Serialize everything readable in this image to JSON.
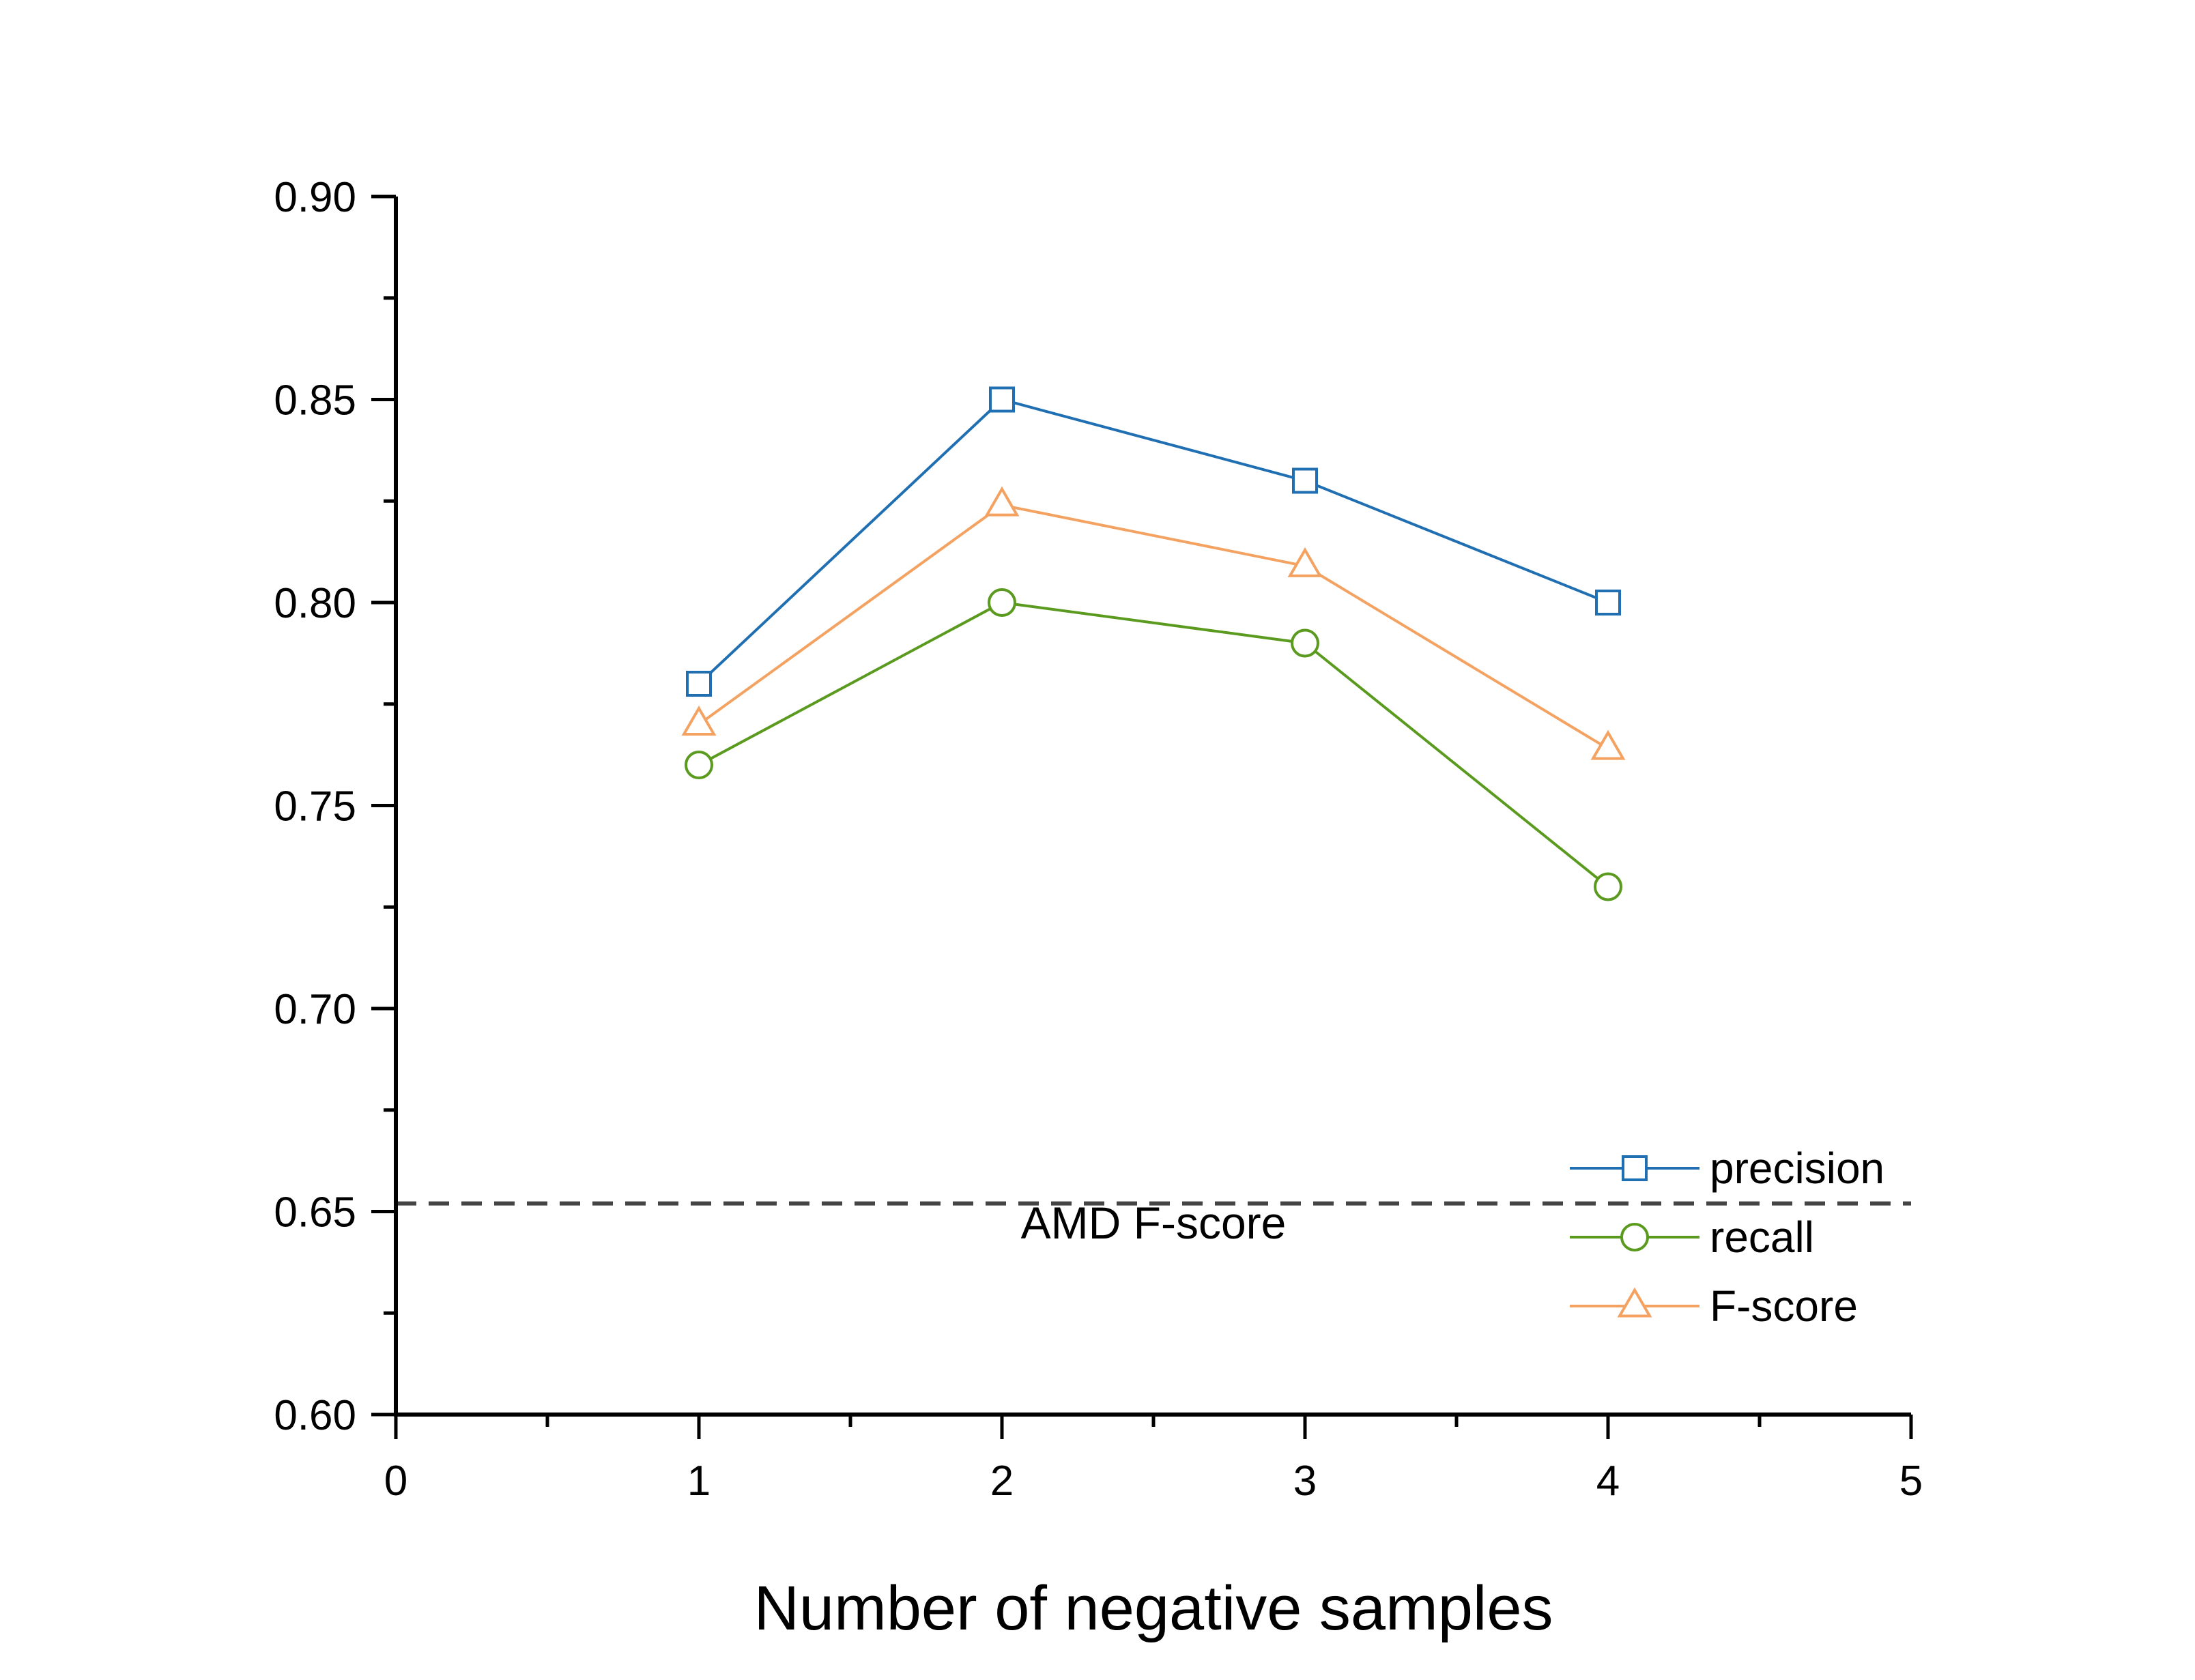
{
  "chart_data": {
    "type": "line",
    "title": "",
    "xlabel": "Number of negative samples",
    "ylabel": "",
    "xlim": [
      0,
      5
    ],
    "ylim": [
      0.6,
      0.9
    ],
    "x_ticks": [
      "0",
      "1",
      "2",
      "3",
      "4",
      "5"
    ],
    "y_ticks": [
      "0.60",
      "0.65",
      "0.70",
      "0.75",
      "0.80",
      "0.85",
      "0.90"
    ],
    "x_tick_values": [
      0,
      1,
      2,
      3,
      4,
      5
    ],
    "y_tick_values": [
      0.6,
      0.65,
      0.7,
      0.75,
      0.8,
      0.85,
      0.9
    ],
    "x_minor_tick_values": [
      0.5,
      1.5,
      2.5,
      3.5,
      4.5
    ],
    "y_minor_tick_values": [
      0.625,
      0.675,
      0.725,
      0.775,
      0.825,
      0.875
    ],
    "grid": false,
    "legend_position": "bottom-right",
    "x": [
      1,
      2,
      3,
      4
    ],
    "series": [
      {
        "name": "precision",
        "values": [
          0.78,
          0.85,
          0.83,
          0.8
        ],
        "color": "#1f6fb2",
        "marker": "square"
      },
      {
        "name": "recall",
        "values": [
          0.76,
          0.8,
          0.79,
          0.73
        ],
        "color": "#5a9a1e",
        "marker": "circle"
      },
      {
        "name": "F-score",
        "values": [
          0.77,
          0.824,
          0.809,
          0.764
        ],
        "color": "#f4a261",
        "marker": "triangle"
      }
    ],
    "reference_line": {
      "label": "AMD F-score",
      "value": 0.652,
      "color": "#444444",
      "style": "dashed"
    }
  }
}
